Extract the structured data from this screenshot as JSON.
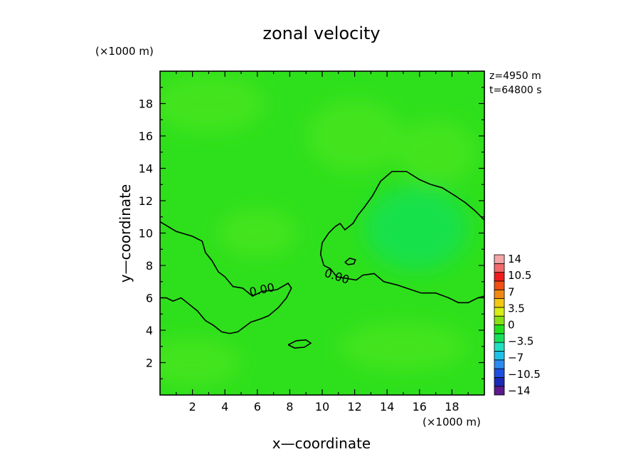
{
  "chart_data": {
    "type": "heatmap",
    "title": "zonal velocity",
    "xlabel": "x—coordinate",
    "ylabel": "y—coordinate",
    "x_unit": "(×1000 m)",
    "y_unit": "(×1000 m)",
    "xlim": [
      0,
      20
    ],
    "ylim": [
      0,
      20
    ],
    "x_ticks": [
      2,
      4,
      6,
      8,
      10,
      12,
      14,
      16,
      18
    ],
    "y_ticks": [
      2,
      4,
      6,
      8,
      10,
      12,
      14,
      16,
      18
    ],
    "info": [
      "z=4950  m",
      "t=64800  s"
    ],
    "colorbar": {
      "colors": [
        "#5a1a8a",
        "#1a2ab8",
        "#1f4fe0",
        "#2a8cf0",
        "#20c0e8",
        "#20e0c0",
        "#19e05a",
        "#22e01e",
        "#86e014",
        "#d8ee14",
        "#f2c814",
        "#f08a14",
        "#f05014",
        "#f01c1c",
        "#f26a6a",
        "#f4a6a6"
      ],
      "labels": [
        "14",
        "10.5",
        "7",
        "3.5",
        "0",
        "−3.5",
        "−7",
        "−10.5",
        "−14"
      ]
    },
    "field_fill": "#2ee01c",
    "lighter_patches": "#46e41e",
    "negative_region": "#14e04e",
    "contours": [
      {
        "level_label": "0.00",
        "points": [
          [
            0,
            10.7
          ],
          [
            1,
            10.1
          ],
          [
            2,
            9.8
          ],
          [
            2.6,
            9.5
          ],
          [
            2.8,
            8.8
          ],
          [
            3.2,
            8.3
          ],
          [
            3.6,
            7.6
          ],
          [
            4,
            7.3
          ],
          [
            4.5,
            6.7
          ],
          [
            5.1,
            6.6
          ],
          [
            5.7,
            6.1
          ],
          [
            6.3,
            6.4
          ],
          [
            7.2,
            6.5
          ],
          [
            7.9,
            6.9
          ],
          [
            8.1,
            6.6
          ],
          [
            7.8,
            6.0
          ],
          [
            7.3,
            5.4
          ],
          [
            6.7,
            4.9
          ],
          [
            6.2,
            4.7
          ],
          [
            5.6,
            4.5
          ],
          [
            5.2,
            4.2
          ],
          [
            4.8,
            3.9
          ],
          [
            4.3,
            3.8
          ],
          [
            3.8,
            3.9
          ],
          [
            3.3,
            4.3
          ],
          [
            2.8,
            4.6
          ],
          [
            2.3,
            5.2
          ],
          [
            1.8,
            5.6
          ],
          [
            1.3,
            6.0
          ],
          [
            0.8,
            5.8
          ],
          [
            0.4,
            6.0
          ],
          [
            0,
            6.0
          ]
        ]
      },
      {
        "level_label": "0.00",
        "points": [
          [
            20,
            10.8
          ],
          [
            19.4,
            11.4
          ],
          [
            18.8,
            11.9
          ],
          [
            18.2,
            12.3
          ],
          [
            17.4,
            12.8
          ],
          [
            16.7,
            13.0
          ],
          [
            16,
            13.3
          ],
          [
            15.2,
            13.8
          ],
          [
            14.3,
            13.8
          ],
          [
            13.6,
            13.2
          ],
          [
            13.1,
            12.3
          ],
          [
            12.6,
            11.6
          ],
          [
            12.2,
            11.1
          ],
          [
            11.9,
            10.6
          ],
          [
            11.4,
            10.2
          ],
          [
            11.1,
            10.6
          ],
          [
            10.8,
            10.4
          ],
          [
            10.4,
            10.0
          ],
          [
            10,
            9.4
          ],
          [
            9.9,
            8.7
          ],
          [
            10.1,
            8.0
          ],
          [
            10.5,
            7.8
          ],
          [
            10.9,
            7.3
          ],
          [
            11.5,
            7.2
          ],
          [
            12.1,
            7.1
          ],
          [
            12.5,
            7.4
          ],
          [
            13.2,
            7.5
          ],
          [
            13.8,
            7.0
          ],
          [
            14.6,
            6.8
          ],
          [
            15.2,
            6.6
          ],
          [
            16.1,
            6.3
          ],
          [
            17.0,
            6.3
          ],
          [
            17.8,
            6.0
          ],
          [
            18.4,
            5.7
          ],
          [
            19.0,
            5.7
          ],
          [
            19.6,
            6.0
          ],
          [
            20,
            6.1
          ]
        ]
      },
      {
        "level_label": "",
        "points": [
          [
            11.4,
            8.2
          ],
          [
            11.7,
            8.45
          ],
          [
            12.05,
            8.35
          ],
          [
            11.95,
            8.1
          ],
          [
            11.6,
            8.05
          ],
          [
            11.4,
            8.2
          ]
        ]
      },
      {
        "level_label": "",
        "points": [
          [
            7.9,
            3.1
          ],
          [
            8.4,
            3.35
          ],
          [
            9.0,
            3.4
          ],
          [
            9.3,
            3.2
          ],
          [
            8.9,
            2.95
          ],
          [
            8.3,
            2.9
          ],
          [
            7.9,
            3.1
          ]
        ]
      }
    ]
  }
}
